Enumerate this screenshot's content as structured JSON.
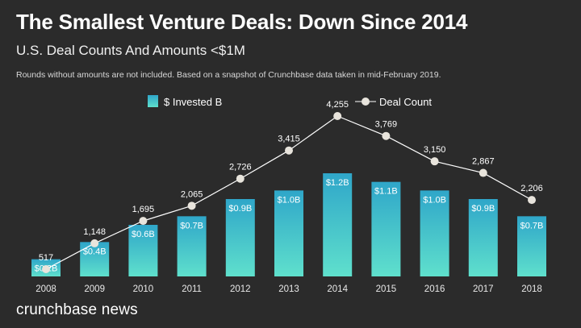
{
  "title": "The Smallest Venture Deals: Down Since 2014",
  "subtitle": "U.S. Deal Counts And Amounts <$1M",
  "note": "Rounds without amounts are not included. Based on a snapshot of Crunchbase data taken in mid-February 2019.",
  "brand": "crunchbase news",
  "colors": {
    "background": "#2b2b2b",
    "bar_top": "#2fa6c9",
    "bar_bottom": "#5fe0cc",
    "line": "#ffffff",
    "marker": "#e8e4dc"
  },
  "chart_data": {
    "type": "bar",
    "categories": [
      "2008",
      "2009",
      "2010",
      "2011",
      "2012",
      "2013",
      "2014",
      "2015",
      "2016",
      "2017",
      "2018"
    ],
    "series": [
      {
        "name": "$ Invested B",
        "type": "bar",
        "values": [
          0.2,
          0.4,
          0.6,
          0.7,
          0.9,
          1.0,
          1.2,
          1.1,
          1.0,
          0.9,
          0.7
        ],
        "labels": [
          "$0.2B",
          "$0.4B",
          "$0.6B",
          "$0.7B",
          "$0.9B",
          "$1.0B",
          "$1.2B",
          "$1.1B",
          "$1.0B",
          "$0.9B",
          "$0.7B"
        ]
      },
      {
        "name": "Deal Count",
        "type": "line",
        "values": [
          517,
          1148,
          1695,
          2065,
          2726,
          3415,
          4255,
          3769,
          3150,
          2867,
          2206
        ],
        "labels": [
          "517",
          "1,148",
          "1,695",
          "2,065",
          "2,726",
          "3,415",
          "4,255",
          "3,769",
          "3,150",
          "2,867",
          "2,206"
        ]
      }
    ],
    "legend_position": "top",
    "grid": false
  }
}
